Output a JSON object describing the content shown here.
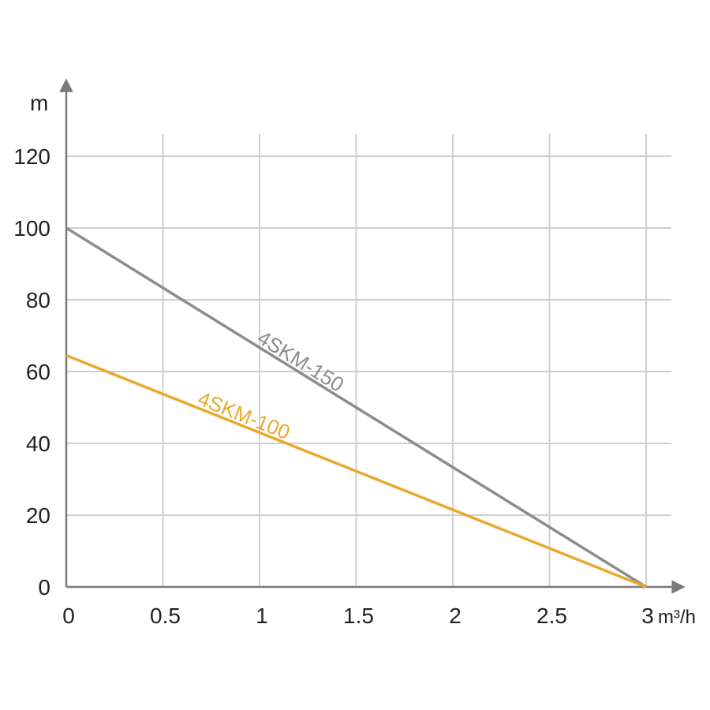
{
  "chart_data": {
    "type": "line",
    "xlabel": "m³/h",
    "ylabel": "m",
    "xlim": [
      0,
      3
    ],
    "ylim": [
      0,
      120
    ],
    "x_ticks": [
      "0",
      "0.5",
      "1",
      "1.5",
      "2",
      "2.5",
      "3"
    ],
    "y_ticks": [
      "0",
      "20",
      "40",
      "60",
      "80",
      "100",
      "120"
    ],
    "grid": true,
    "series": [
      {
        "name": "4SKM-150",
        "color": "#8c8c8c",
        "x": [
          0,
          3
        ],
        "y": [
          100,
          0
        ]
      },
      {
        "name": "4SKM-100",
        "color": "#e8a92c",
        "x": [
          0,
          3
        ],
        "y": [
          64.5,
          0
        ]
      }
    ]
  }
}
